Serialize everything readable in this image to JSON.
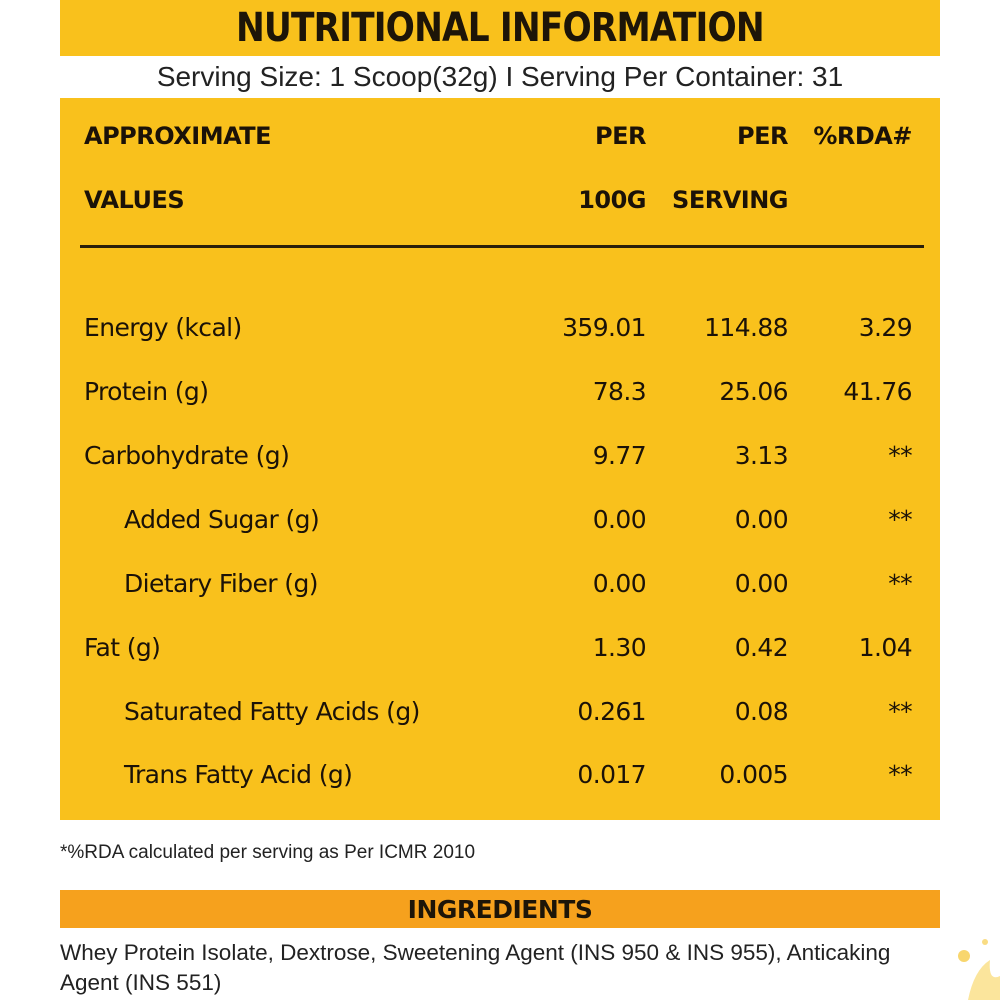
{
  "header": {
    "title": "NUTRITIONAL INFORMATION",
    "serving_line": "Serving Size: 1 Scoop(32g) I Serving Per Container: 31"
  },
  "table": {
    "columns": [
      {
        "top": "APPROXIMATE",
        "bottom": "VALUES"
      },
      {
        "top": "PER",
        "bottom": "100G"
      },
      {
        "top": "PER",
        "bottom": "SERVING"
      },
      {
        "top": "%RDA#",
        "bottom": ""
      }
    ],
    "rows": [
      {
        "name": "Energy (kcal)",
        "per100g": "359.01",
        "perServing": "114.88",
        "rda": "3.29",
        "indent": false
      },
      {
        "name": "Protein (g)",
        "per100g": "78.3",
        "perServing": "25.06",
        "rda": "41.76",
        "indent": false
      },
      {
        "name": "Carbohydrate (g)",
        "per100g": "9.77",
        "perServing": "3.13",
        "rda": "**",
        "indent": false
      },
      {
        "name": "Added Sugar (g)",
        "per100g": "0.00",
        "perServing": "0.00",
        "rda": "**",
        "indent": true
      },
      {
        "name": "Dietary Fiber (g)",
        "per100g": "0.00",
        "perServing": "0.00",
        "rda": "**",
        "indent": true
      },
      {
        "name": "Fat (g)",
        "per100g": "1.30",
        "perServing": "0.42",
        "rda": "1.04",
        "indent": false
      },
      {
        "name": "Saturated Fatty Acids (g)",
        "per100g": "0.261",
        "perServing": "0.08",
        "rda": "**",
        "indent": true
      },
      {
        "name": "Trans Fatty Acid (g)",
        "per100g": "0.017",
        "perServing": "0.005",
        "rda": "**",
        "indent": true
      }
    ]
  },
  "footnote": "*%RDA calculated per serving as Per ICMR 2010",
  "ingredients": {
    "title": "INGREDIENTS",
    "text": "Whey Protein Isolate, Dextrose, Sweetening Agent (INS 950 & INS 955), Anticaking Agent (INS 551)"
  },
  "colors": {
    "panel_yellow": "#f9c11c",
    "ingredients_orange": "#f6a11d",
    "text_dark": "#1b1208"
  }
}
